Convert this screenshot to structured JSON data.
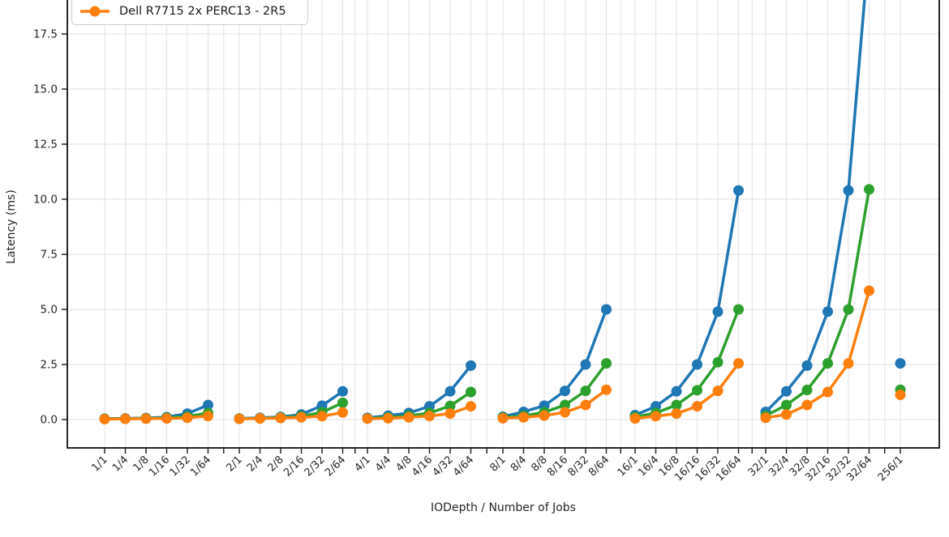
{
  "chart_data": {
    "type": "line",
    "title": "",
    "xlabel": "IODepth / Number of Jobs",
    "ylabel": "Latency (ms)",
    "grid": true,
    "ylim_visible_top": 19.0,
    "y_tick_labels": [
      "0.0",
      "2.5",
      "5.0",
      "7.5",
      "10.0",
      "12.5",
      "15.0",
      "17.5"
    ],
    "y_tick_values": [
      0,
      2.5,
      5.0,
      7.5,
      10.0,
      12.5,
      15.0,
      17.5
    ],
    "categories": [
      "1/1",
      "1/4",
      "1/8",
      "1/16",
      "1/32",
      "1/64",
      "2/1",
      "2/4",
      "2/8",
      "2/16",
      "2/32",
      "2/64",
      "4/1",
      "4/4",
      "4/8",
      "4/16",
      "4/32",
      "4/64",
      "8/1",
      "8/4",
      "8/8",
      "8/16",
      "8/32",
      "8/64",
      "16/1",
      "16/4",
      "16/8",
      "16/16",
      "16/32",
      "16/64",
      "32/1",
      "32/4",
      "32/8",
      "32/16",
      "32/32",
      "32/64",
      "256/1"
    ],
    "series": [
      {
        "id": "series-blue",
        "color": "#1f77b4",
        "values": [
          0.04,
          0.05,
          0.07,
          0.11,
          0.27,
          0.66,
          0.05,
          0.08,
          0.12,
          0.23,
          0.63,
          1.28,
          0.08,
          0.18,
          0.3,
          0.6,
          1.28,
          2.45,
          0.13,
          0.35,
          0.63,
          1.3,
          2.5,
          5.0,
          0.2,
          0.6,
          1.28,
          2.5,
          4.9,
          10.4,
          0.35,
          1.28,
          2.45,
          4.9,
          10.4,
          21.5,
          2.55
        ]
      },
      {
        "id": "series-green",
        "color": "#2ca02c",
        "values": [
          0.03,
          0.04,
          0.06,
          0.08,
          0.14,
          0.3,
          0.04,
          0.06,
          0.09,
          0.15,
          0.33,
          0.76,
          0.05,
          0.1,
          0.17,
          0.3,
          0.62,
          1.25,
          0.09,
          0.17,
          0.33,
          0.66,
          1.3,
          2.55,
          0.12,
          0.3,
          0.66,
          1.33,
          2.6,
          5.0,
          0.17,
          0.66,
          1.34,
          2.55,
          5.0,
          10.45,
          1.35
        ]
      },
      {
        "id": "series-orange",
        "label": "Dell R7715 2x PERC13 - 2R5",
        "color": "#ff7f0e",
        "values": [
          0.02,
          0.03,
          0.04,
          0.05,
          0.08,
          0.16,
          0.03,
          0.05,
          0.07,
          0.1,
          0.15,
          0.32,
          0.04,
          0.06,
          0.1,
          0.16,
          0.27,
          0.6,
          0.06,
          0.1,
          0.18,
          0.33,
          0.66,
          1.35,
          0.05,
          0.15,
          0.27,
          0.6,
          1.3,
          2.55,
          0.08,
          0.23,
          0.66,
          1.25,
          2.55,
          5.85,
          1.12
        ]
      }
    ],
    "legend": {
      "note": "legend box partially cut off at top of screenshot; only one entry visible",
      "entries": [
        {
          "label": "Dell R7715 2x PERC13 - 2R5",
          "color": "#ff7f0e"
        }
      ]
    }
  }
}
